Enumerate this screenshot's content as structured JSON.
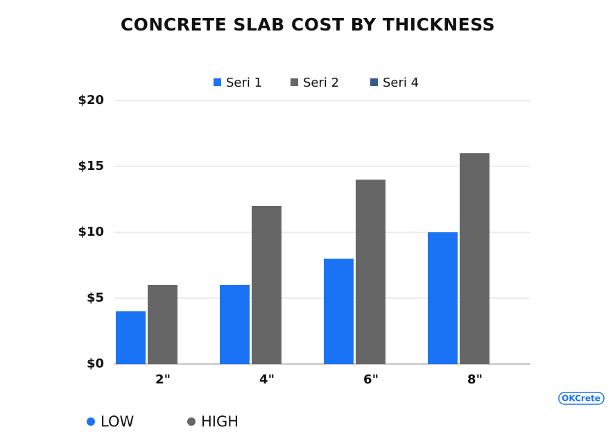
{
  "chart_data": {
    "type": "bar",
    "title": "CONCRETE SLAB COST BY THICKNESS",
    "categories": [
      "2\"",
      "4\"",
      "6\"",
      "8\""
    ],
    "series": [
      {
        "name": "Seri 1",
        "color": "#1a73f5",
        "values": [
          4,
          6,
          8,
          10
        ]
      },
      {
        "name": "Seri 2",
        "color": "#666666",
        "values": [
          6,
          12,
          14,
          16
        ]
      },
      {
        "name": "Seri 4",
        "color": "#3b5a8a",
        "values": [
          null,
          null,
          null,
          null
        ]
      }
    ],
    "ylim": [
      0,
      20
    ],
    "yticks": [
      {
        "value": 0,
        "label": "$0"
      },
      {
        "value": 5,
        "label": "$5"
      },
      {
        "value": 10,
        "label": "$10"
      },
      {
        "value": 15,
        "label": "$15"
      },
      {
        "value": 20,
        "label": "$20"
      }
    ],
    "grid": true,
    "legend": "top",
    "bottom_legend": [
      {
        "label": "LOW",
        "color": "#1a73f5"
      },
      {
        "label": "HIGH",
        "color": "#666666"
      }
    ],
    "logo": "OKCrete"
  }
}
